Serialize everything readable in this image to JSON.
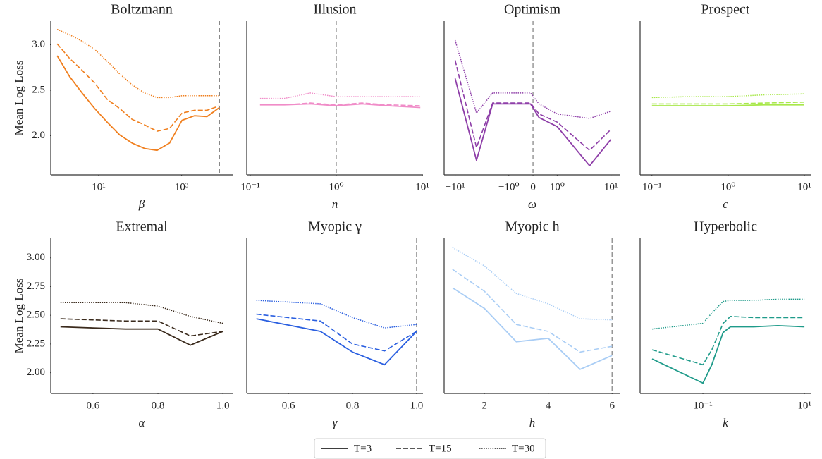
{
  "chart_data": [
    {
      "type": "line",
      "title": "Boltzmann",
      "xlabel": "β",
      "ylabel": "Mean Log Loss",
      "xscale": "log",
      "color": "#f07f1e",
      "x": [
        1,
        2,
        4,
        8,
        16,
        32,
        64,
        128,
        256,
        512,
        1024,
        2048,
        4096,
        8192
      ],
      "series": [
        {
          "name": "T=3",
          "dash": "solid",
          "values": [
            2.88,
            2.65,
            2.47,
            2.3,
            2.15,
            2.01,
            1.92,
            1.86,
            1.84,
            1.92,
            2.17,
            2.22,
            2.21,
            2.31
          ]
        },
        {
          "name": "T=15",
          "dash": "dashed",
          "values": [
            3.01,
            2.85,
            2.72,
            2.58,
            2.4,
            2.3,
            2.18,
            2.12,
            2.05,
            2.08,
            2.25,
            2.28,
            2.28,
            2.33
          ]
        },
        {
          "name": "T=30",
          "dash": "dotted",
          "values": [
            3.17,
            3.11,
            3.04,
            2.95,
            2.82,
            2.68,
            2.56,
            2.47,
            2.42,
            2.42,
            2.44,
            2.44,
            2.44,
            2.44
          ]
        }
      ],
      "vline": 8192,
      "xlim": [
        0.7,
        17000
      ],
      "ylim": [
        1.57,
        3.26
      ],
      "xticks": [
        {
          "value": 10,
          "label": "10¹"
        },
        {
          "value": 1000,
          "label": "10³"
        }
      ],
      "yticks": [
        {
          "value": 2,
          "label": "2.0"
        },
        {
          "value": 2.5,
          "label": "2.5"
        },
        {
          "value": 3,
          "label": "3.0"
        }
      ]
    },
    {
      "type": "line",
      "title": "Illusion",
      "xlabel": "n",
      "xscale": "log",
      "color": "#f08cc8",
      "x": [
        0.13,
        0.25,
        0.5,
        1,
        2,
        4,
        9.5
      ],
      "series": [
        {
          "name": "T=3",
          "dash": "solid",
          "values": [
            2.34,
            2.34,
            2.35,
            2.33,
            2.35,
            2.33,
            2.31
          ]
        },
        {
          "name": "T=15",
          "dash": "dashed",
          "values": [
            2.34,
            2.34,
            2.36,
            2.34,
            2.36,
            2.34,
            2.33
          ]
        },
        {
          "name": "T=30",
          "dash": "dotted",
          "values": [
            2.41,
            2.41,
            2.47,
            2.43,
            2.43,
            2.43,
            2.43
          ]
        }
      ],
      "vline": 1,
      "xlim": [
        0.091,
        10.2
      ],
      "ylim": [
        1.57,
        3.26
      ],
      "xticks": [
        {
          "value": 0.1,
          "label": "10⁻¹"
        },
        {
          "value": 1,
          "label": "10⁰"
        },
        {
          "value": 10,
          "label": "10¹"
        }
      ]
    },
    {
      "type": "line",
      "title": "Optimism",
      "xlabel": "ω",
      "xscale": "symlog",
      "color": "#8e3ea8",
      "x": [
        -10,
        -4,
        -2,
        -0.1,
        0.25,
        1,
        4,
        10
      ],
      "series": [
        {
          "name": "T=3",
          "dash": "solid",
          "values": [
            2.63,
            1.73,
            2.35,
            2.35,
            2.2,
            2.1,
            1.67,
            1.96
          ]
        },
        {
          "name": "T=15",
          "dash": "dashed",
          "values": [
            2.83,
            1.87,
            2.36,
            2.36,
            2.24,
            2.15,
            1.84,
            2.07
          ]
        },
        {
          "name": "T=30",
          "dash": "dotted",
          "values": [
            3.05,
            2.25,
            2.47,
            2.47,
            2.35,
            2.24,
            2.19,
            2.27
          ]
        }
      ],
      "vline": 0,
      "xlim": [
        -16,
        15
      ],
      "ylim": [
        1.57,
        3.26
      ],
      "xticks": [
        {
          "value": -10,
          "label": "−10¹"
        },
        {
          "value": -1,
          "label": "−10⁰"
        },
        0,
        {
          "value": 1,
          "label": "10⁰"
        },
        {
          "value": 10,
          "label": "10¹"
        }
      ]
    },
    {
      "type": "line",
      "title": "Prospect",
      "xlabel": "c",
      "xscale": "log",
      "color": "#a8e84a",
      "x": [
        0.1,
        0.3,
        1,
        3,
        10
      ],
      "series": [
        {
          "name": "T=3",
          "dash": "solid",
          "values": [
            2.33,
            2.33,
            2.33,
            2.34,
            2.34
          ]
        },
        {
          "name": "T=15",
          "dash": "dashed",
          "values": [
            2.35,
            2.35,
            2.35,
            2.36,
            2.37
          ]
        },
        {
          "name": "T=30",
          "dash": "dotted",
          "values": [
            2.42,
            2.43,
            2.43,
            2.45,
            2.46
          ]
        }
      ],
      "xlim": [
        0.07,
        12.1
      ],
      "ylim": [
        1.57,
        3.26
      ],
      "xticks": [
        {
          "value": 0.1,
          "label": "10⁻¹"
        },
        {
          "value": 1,
          "label": "10⁰"
        },
        {
          "value": 10,
          "label": "10¹"
        }
      ]
    },
    {
      "type": "line",
      "title": "Extremal",
      "xlabel": "α",
      "ylabel": "Mean Log Loss",
      "xscale": "linear",
      "color": "#3a2a1c",
      "x": [
        0.5,
        0.6,
        0.7,
        0.8,
        0.9,
        1.0
      ],
      "series": [
        {
          "name": "T=3",
          "dash": "solid",
          "values": [
            2.4,
            2.39,
            2.38,
            2.38,
            2.24,
            2.36
          ]
        },
        {
          "name": "T=15",
          "dash": "dashed",
          "values": [
            2.47,
            2.46,
            2.45,
            2.45,
            2.32,
            2.36
          ]
        },
        {
          "name": "T=30",
          "dash": "dotted",
          "values": [
            2.61,
            2.61,
            2.61,
            2.58,
            2.49,
            2.43
          ]
        }
      ],
      "xlim": [
        0.47,
        1.03
      ],
      "ylim": [
        1.82,
        3.17
      ],
      "xticks": [
        0.6,
        0.8,
        {
          "value": 1,
          "label": "1.0"
        }
      ],
      "yticks": [
        {
          "value": 2,
          "label": "2.00"
        },
        2.25,
        {
          "value": 2.5,
          "label": "2.50"
        },
        2.75,
        {
          "value": 3,
          "label": "3.00"
        }
      ]
    },
    {
      "type": "line",
      "title": "Myopic γ",
      "xlabel": "γ",
      "xscale": "linear",
      "color": "#2a5fe0",
      "x": [
        0.5,
        0.7,
        0.8,
        0.9,
        1.0
      ],
      "series": [
        {
          "name": "T=3",
          "dash": "solid",
          "values": [
            2.47,
            2.36,
            2.18,
            2.07,
            2.36
          ]
        },
        {
          "name": "T=15",
          "dash": "dashed",
          "values": [
            2.51,
            2.45,
            2.25,
            2.19,
            2.36
          ]
        },
        {
          "name": "T=30",
          "dash": "dotted",
          "values": [
            2.63,
            2.6,
            2.48,
            2.39,
            2.42
          ]
        }
      ],
      "vline": 1,
      "xlim": [
        0.47,
        1.02
      ],
      "ylim": [
        1.82,
        3.17
      ],
      "xticks": [
        0.6,
        0.8,
        {
          "value": 1,
          "label": "1.0"
        }
      ]
    },
    {
      "type": "line",
      "title": "Myopic h",
      "xlabel": "h",
      "xscale": "linear",
      "color": "#a9cdf5",
      "x": [
        1,
        2,
        3,
        4,
        5,
        6
      ],
      "series": [
        {
          "name": "T=3",
          "dash": "solid",
          "values": [
            2.74,
            2.56,
            2.27,
            2.3,
            2.03,
            2.15
          ]
        },
        {
          "name": "T=15",
          "dash": "dashed",
          "values": [
            2.9,
            2.71,
            2.42,
            2.36,
            2.18,
            2.23
          ]
        },
        {
          "name": "T=30",
          "dash": "dotted",
          "values": [
            3.09,
            2.93,
            2.69,
            2.6,
            2.47,
            2.46
          ]
        }
      ],
      "vline": 6,
      "xlim": [
        0.74,
        6.26
      ],
      "ylim": [
        1.82,
        3.17
      ],
      "xticks": [
        2,
        4,
        6
      ]
    },
    {
      "type": "line",
      "title": "Hyperbolic",
      "xlabel": "k",
      "xscale": "log",
      "color": "#1f9b8a",
      "x": [
        0.01,
        0.1,
        0.15,
        0.25,
        0.35,
        1,
        3,
        10
      ],
      "series": [
        {
          "name": "T=3",
          "dash": "solid",
          "values": [
            2.12,
            1.91,
            2.07,
            2.35,
            2.4,
            2.4,
            2.41,
            2.4
          ]
        },
        {
          "name": "T=15",
          "dash": "dashed",
          "values": [
            2.2,
            2.07,
            2.2,
            2.43,
            2.49,
            2.48,
            2.48,
            2.48
          ]
        },
        {
          "name": "T=30",
          "dash": "dotted",
          "values": [
            2.38,
            2.43,
            2.52,
            2.62,
            2.63,
            2.63,
            2.64,
            2.64
          ]
        }
      ],
      "xlim": [
        0.0058,
        13.3
      ],
      "ylim": [
        1.82,
        3.17
      ],
      "xticks": [
        {
          "value": 0.1,
          "label": "10⁻¹"
        },
        {
          "value": 10,
          "label": "10¹"
        }
      ]
    }
  ]
}
